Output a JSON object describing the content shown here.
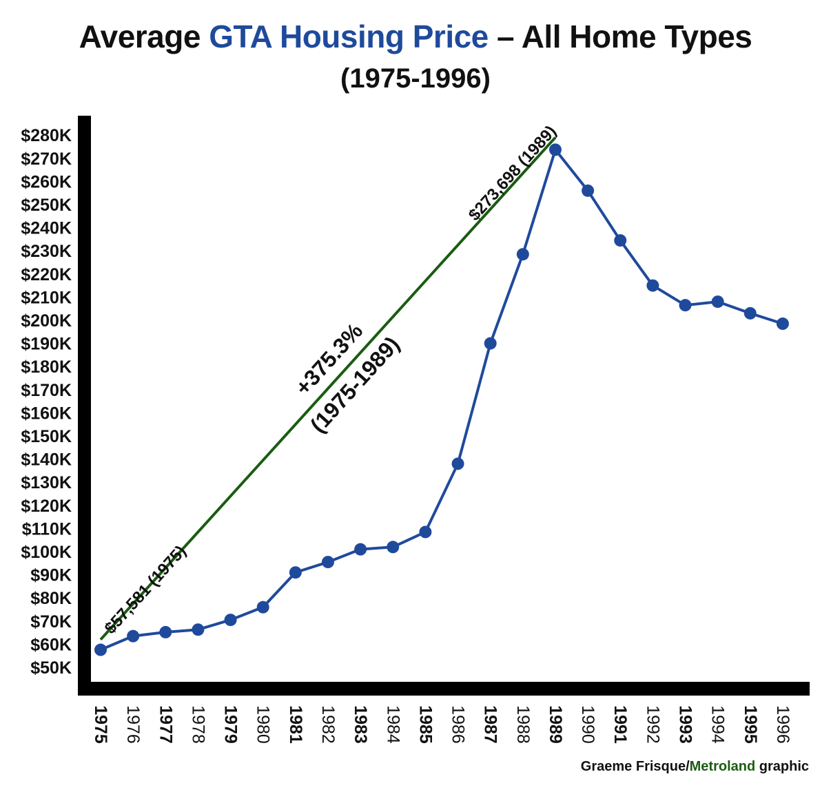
{
  "title": {
    "prefix": "Average ",
    "highlight": "GTA Housing Price",
    "suffix": " – All Home Types",
    "subtitle": "(1975-1996)"
  },
  "credit": {
    "author": "Graeme Frisque/",
    "org": "Metroland",
    "suffix": " graphic"
  },
  "colors": {
    "series": "#1f4a9c",
    "trend": "#1a5c12",
    "axis": "#000000",
    "highlight": "#1f4a9c",
    "credit_org": "#1a5c12"
  },
  "chart_data": {
    "type": "line",
    "title": "Average GTA Housing Price – All Home Types (1975-1996)",
    "xlabel": "",
    "ylabel": "",
    "ylim": [
      45000,
      285000
    ],
    "y_ticks": [
      50000,
      60000,
      70000,
      80000,
      90000,
      100000,
      110000,
      120000,
      130000,
      140000,
      150000,
      160000,
      170000,
      180000,
      190000,
      200000,
      210000,
      220000,
      230000,
      240000,
      250000,
      260000,
      270000,
      280000
    ],
    "y_tick_labels": [
      "$50K",
      "$60K",
      "$70K",
      "$80K",
      "$90K",
      "$100K",
      "$110K",
      "$120K",
      "$130K",
      "$140K",
      "$150K",
      "$160K",
      "$170K",
      "$180K",
      "$190K",
      "$200K",
      "$210K",
      "$220K",
      "$230K",
      "$240K",
      "$250K",
      "$260K",
      "$270K",
      "$280K"
    ],
    "x": [
      "1975",
      "1976",
      "1977",
      "1978",
      "1979",
      "1980",
      "1981",
      "1982",
      "1983",
      "1984",
      "1985",
      "1986",
      "1987",
      "1988",
      "1989",
      "1990",
      "1991",
      "1992",
      "1993",
      "1994",
      "1995",
      "1996"
    ],
    "x_bold": [
      true,
      false,
      true,
      false,
      true,
      false,
      true,
      false,
      true,
      false,
      true,
      false,
      true,
      false,
      true,
      false,
      true,
      false,
      true,
      false,
      true,
      false
    ],
    "series": [
      {
        "values": [
          57581,
          63500,
          65200,
          66300,
          70500,
          76000,
          91000,
          95500,
          101000,
          102000,
          108500,
          138000,
          190000,
          228500,
          273698,
          256000,
          234500,
          215000,
          206500,
          208000,
          203000,
          198500
        ]
      }
    ],
    "trend_line": {
      "from": {
        "x": "1975",
        "y": 62000
      },
      "to": {
        "x": "1989",
        "y": 279000
      }
    },
    "annotations": [
      {
        "text": "$57,581 (1975)",
        "x": "1976.5",
        "y": 82000
      },
      {
        "text": "$273,698 (1989)",
        "x": "1987.8",
        "y": 262000
      },
      {
        "text": "+375.3%",
        "x": "1982.2",
        "y": 181000
      },
      {
        "text": "(1975-1989)",
        "x": "1983",
        "y": 170000
      }
    ],
    "grid": false,
    "legend": "none"
  }
}
